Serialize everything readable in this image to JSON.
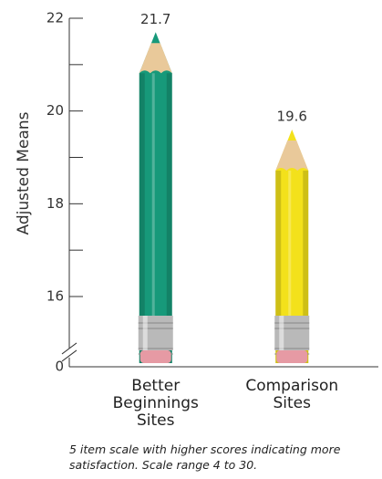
{
  "chart_data": {
    "type": "bar",
    "y_label": "Adjusted Means",
    "categories": [
      "Better Beginnings Sites",
      "Comparison Sites"
    ],
    "series": [
      {
        "colors": [
          "#17997a",
          "#f3e11b"
        ],
        "values": [
          21.7,
          19.6
        ]
      }
    ],
    "ylim": [
      0,
      22
    ],
    "yticks": [
      0,
      16,
      18,
      20,
      22
    ],
    "minor_yticks": [
      17,
      19,
      21
    ],
    "axis_break": [
      0,
      15
    ],
    "footnote": "5 item scale with higher scores indicating more satisfaction. Scale range 4 to 30."
  }
}
